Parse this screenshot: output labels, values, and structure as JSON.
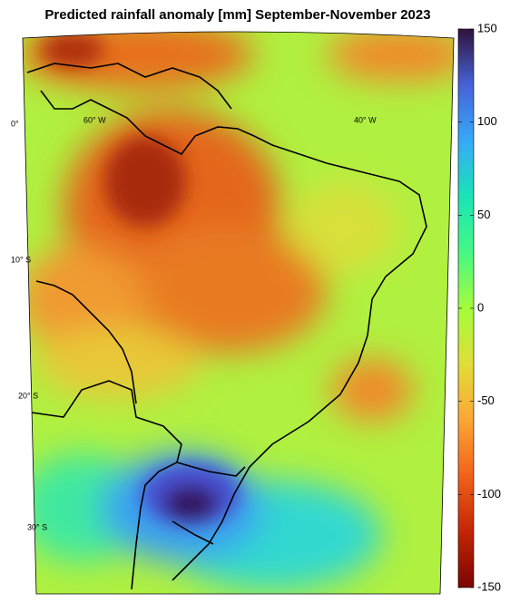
{
  "title": "Predicted rainfall anomaly [mm] September-November 2023",
  "colorbar": {
    "lim": [
      -150,
      150
    ],
    "ticks": [
      150,
      100,
      50,
      0,
      -50,
      -100,
      -150
    ],
    "colormap": [
      "#7a0403",
      "#c42503",
      "#f1621a",
      "#fca635",
      "#e1dd37",
      "#a4fc3b",
      "#46f884",
      "#1ae4b6",
      "#36aaf9",
      "#4662d7",
      "#30123b"
    ]
  },
  "map_labels": [
    "0°",
    "60° W",
    "40° W",
    "10° S",
    "20° S",
    "30° S"
  ]
}
